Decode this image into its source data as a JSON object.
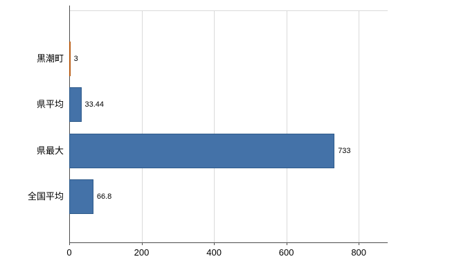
{
  "chart_data": {
    "type": "bar",
    "orientation": "horizontal",
    "categories": [
      "黒潮町",
      "県平均",
      "県最大",
      "全国平均"
    ],
    "values": [
      3,
      33.44,
      733,
      66.8
    ],
    "value_labels": [
      "3",
      "33.44",
      "733",
      "66.8"
    ],
    "xlim": [
      0,
      880
    ],
    "x_ticks": [
      0,
      200,
      400,
      600,
      800
    ],
    "x_tick_labels": [
      "0",
      "200",
      "400",
      "600",
      "800"
    ],
    "grid": true,
    "legend": false,
    "bar_colors": [
      "#e87d2a",
      "#4472a8",
      "#4472a8",
      "#4472a8"
    ],
    "bar_border_colors": [
      "#b85c14",
      "#2e5a8a",
      "#2e5a8a",
      "#2e5a8a"
    ],
    "gridline_color": "#d9d9d9",
    "plot_top_border_color": "#d9d9d9",
    "axis_color": "#4d4d4d",
    "label_color": "#000000"
  }
}
